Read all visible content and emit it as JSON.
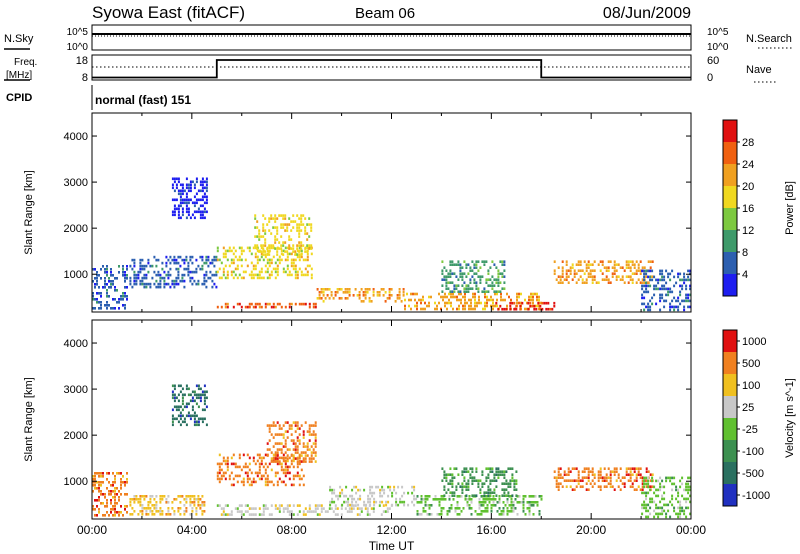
{
  "header": {
    "title": "Syowa East (fitACF)",
    "beam": "Beam 06",
    "date": "08/Jun/2009"
  },
  "top_panels": {
    "nsky_label": "N.Sky",
    "nsky_ticks": [
      "10^5",
      "10^0"
    ],
    "nsearch_label": "N.Search",
    "nsearch_ticks": [
      "10^5",
      "10^0"
    ],
    "freq_label": "Freq.",
    "freq_unit": "[MHz]",
    "freq_ticks": [
      18,
      8
    ],
    "nave_label": "Nave",
    "nave_ticks": [
      60,
      0
    ],
    "cpid_label": "CPID",
    "cpid_value": "normal (fast) 151",
    "freq_steps": [
      {
        "from": 0,
        "to": 5,
        "value": 9
      },
      {
        "from": 5,
        "to": 18,
        "value": 16
      },
      {
        "from": 18,
        "to": 24,
        "value": 9
      }
    ]
  },
  "chart_data": [
    {
      "type": "heatmap",
      "title": "Power",
      "ylabel": "Slant Range [km]",
      "xlim": [
        0,
        24
      ],
      "ylim": [
        180,
        4500
      ],
      "yticks": [
        1000,
        2000,
        3000,
        4000
      ],
      "colorbar": {
        "label": "Power [dB]",
        "ticks": [
          4,
          8,
          12,
          16,
          20,
          24,
          28
        ],
        "colors": [
          "#1e1ef0",
          "#2c5fb0",
          "#3e9a6a",
          "#7dc940",
          "#f0d820",
          "#f0a020",
          "#f06010",
          "#e01010"
        ]
      },
      "features": [
        {
          "x0": 0.0,
          "x1": 1.4,
          "y0": 250,
          "y1": 1200,
          "level": 1
        },
        {
          "x0": 1.5,
          "x1": 5.0,
          "y0": 700,
          "y1": 1400,
          "level": 1
        },
        {
          "x0": 3.2,
          "x1": 4.6,
          "y0": 2200,
          "y1": 3100,
          "level": 0
        },
        {
          "x0": 5.0,
          "x1": 8.8,
          "y0": 900,
          "y1": 1600,
          "level": 4
        },
        {
          "x0": 6.5,
          "x1": 8.8,
          "y0": 1400,
          "y1": 2300,
          "level": 4
        },
        {
          "x0": 5.0,
          "x1": 9.0,
          "y0": 250,
          "y1": 380,
          "level": 6
        },
        {
          "x0": 9.0,
          "x1": 12.5,
          "y0": 400,
          "y1": 700,
          "level": 5
        },
        {
          "x0": 12.5,
          "x1": 18.0,
          "y0": 250,
          "y1": 600,
          "level": 5
        },
        {
          "x0": 14.0,
          "x1": 16.5,
          "y0": 600,
          "y1": 1300,
          "level": 2
        },
        {
          "x0": 16.0,
          "x1": 18.5,
          "y0": 250,
          "y1": 400,
          "level": 7
        },
        {
          "x0": 18.5,
          "x1": 22.5,
          "y0": 800,
          "y1": 1300,
          "level": 5
        },
        {
          "x0": 22.0,
          "x1": 24.0,
          "y0": 250,
          "y1": 1100,
          "level": 1
        }
      ]
    },
    {
      "type": "heatmap",
      "title": "Velocity",
      "ylabel": "Slant Range [km]",
      "xlabel": "Time UT",
      "xlim": [
        0,
        24
      ],
      "xticks": [
        "00:00",
        "04:00",
        "08:00",
        "12:00",
        "16:00",
        "20:00",
        "00:00"
      ],
      "ylim": [
        180,
        4500
      ],
      "yticks": [
        1000,
        2000,
        3000,
        4000
      ],
      "colorbar": {
        "label": "Velocity [m s^-1]",
        "ticks": [
          1000,
          500,
          100,
          25,
          -25,
          -100,
          -500,
          -1000
        ],
        "colors": [
          "#2030c0",
          "#2a7060",
          "#3c9050",
          "#60c030",
          "#c8c8c8",
          "#f0c020",
          "#f08020",
          "#e01010"
        ]
      },
      "features": [
        {
          "x0": 0.0,
          "x1": 1.4,
          "y0": 250,
          "y1": 1200,
          "level": 6
        },
        {
          "x0": 1.5,
          "x1": 4.5,
          "y0": 250,
          "y1": 700,
          "level": 5
        },
        {
          "x0": 3.2,
          "x1": 4.6,
          "y0": 2200,
          "y1": 3100,
          "level": 1
        },
        {
          "x0": 5.0,
          "x1": 8.5,
          "y0": 900,
          "y1": 1600,
          "level": 6
        },
        {
          "x0": 7.0,
          "x1": 9.0,
          "y0": 1400,
          "y1": 2300,
          "level": 6
        },
        {
          "x0": 5.0,
          "x1": 12.0,
          "y0": 250,
          "y1": 500,
          "level": 4
        },
        {
          "x0": 9.5,
          "x1": 13.0,
          "y0": 500,
          "y1": 900,
          "level": 4
        },
        {
          "x0": 13.0,
          "x1": 18.0,
          "y0": 250,
          "y1": 700,
          "level": 3
        },
        {
          "x0": 14.0,
          "x1": 17.0,
          "y0": 700,
          "y1": 1300,
          "level": 2
        },
        {
          "x0": 18.5,
          "x1": 22.5,
          "y0": 800,
          "y1": 1300,
          "level": 6
        },
        {
          "x0": 22.0,
          "x1": 24.0,
          "y0": 250,
          "y1": 1100,
          "level": 3
        }
      ]
    }
  ]
}
